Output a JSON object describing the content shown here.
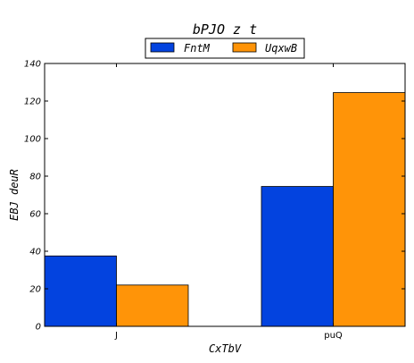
{
  "chart_data": {
    "type": "bar",
    "title": "bPJO z  t",
    "xlabel": "CxTbV",
    "ylabel": "EBJ  deuR",
    "categories": [
      "J",
      "puQ"
    ],
    "series": [
      {
        "name": "FntM",
        "values": [
          37.5,
          74.5
        ],
        "color": "#0343df"
      },
      {
        "name": "UqxwB",
        "values": [
          22,
          124.5
        ],
        "color": "#ff9408"
      }
    ],
    "ylim": [
      0,
      140
    ],
    "yticks": [
      0,
      20,
      40,
      60,
      80,
      100,
      120,
      140
    ],
    "legend_position": "top-center",
    "grid": false
  }
}
